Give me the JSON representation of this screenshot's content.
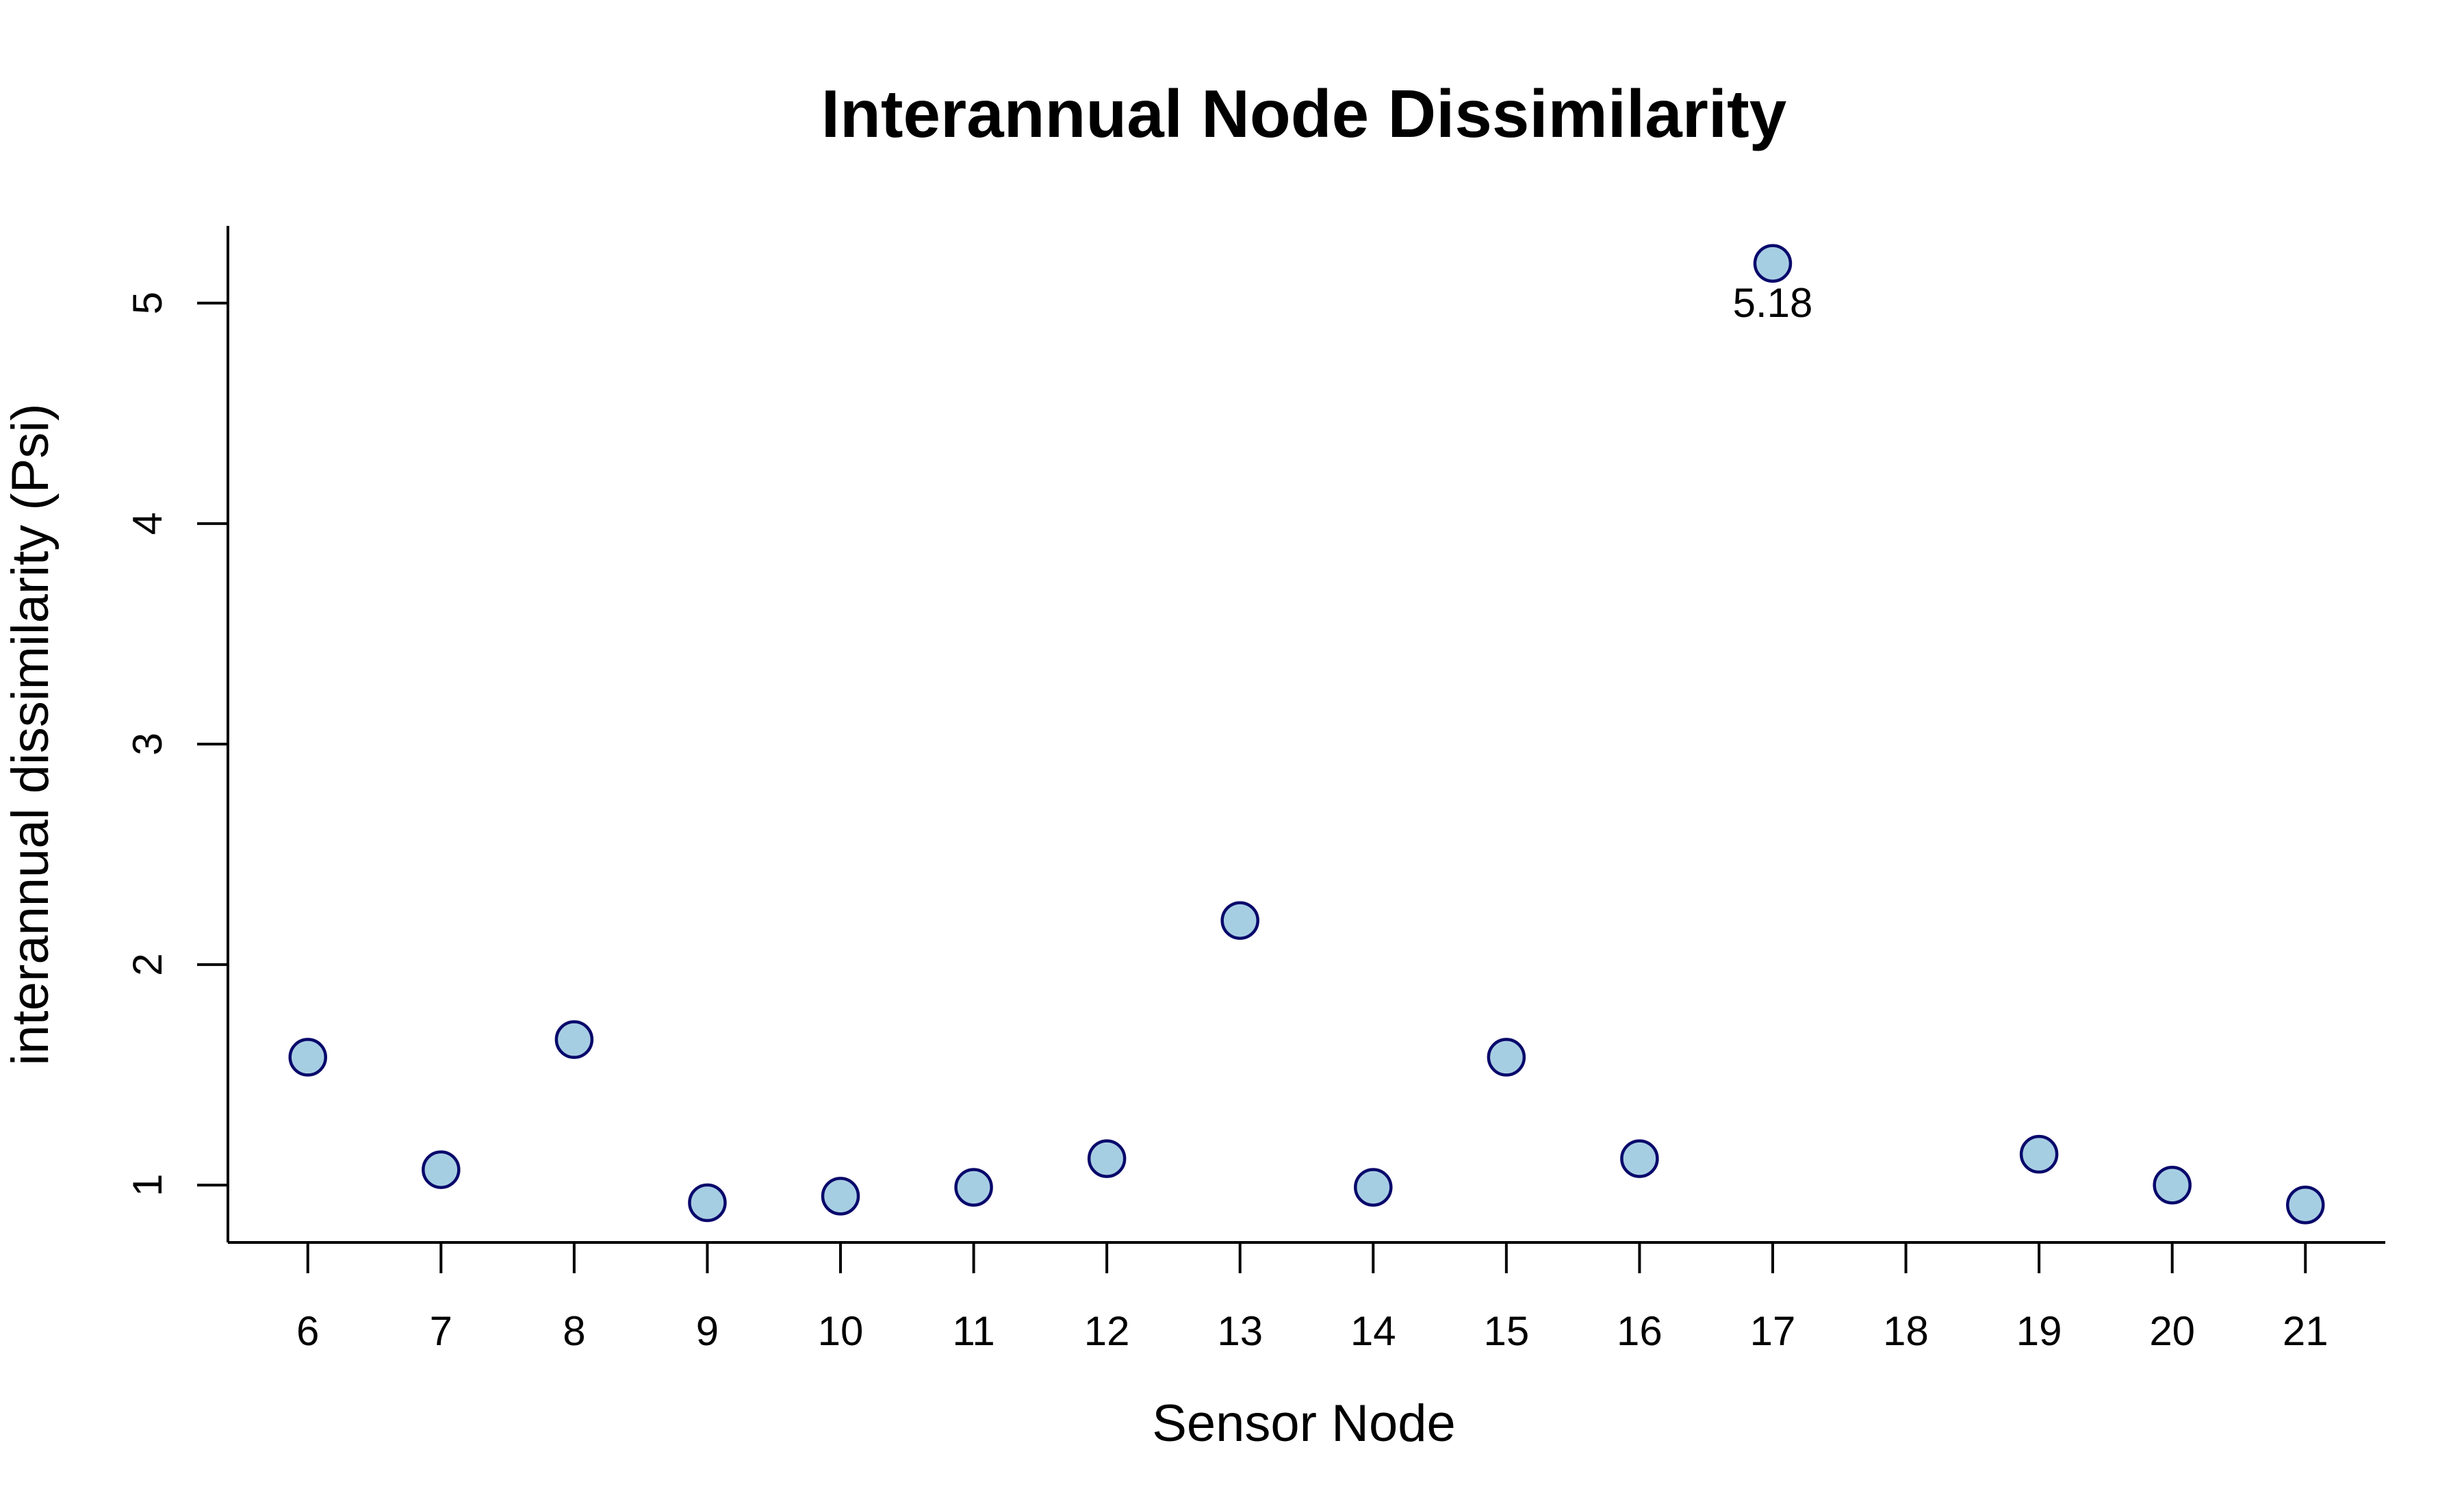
{
  "chart_data": {
    "type": "scatter",
    "title": "Interannual Node Dissimilarity",
    "xlabel": "Sensor Node",
    "ylabel": "interannual dissimilarity (Psi)",
    "x_ticks": [
      "6",
      "7",
      "8",
      "9",
      "10",
      "11",
      "12",
      "13",
      "14",
      "15",
      "16",
      "17",
      "18",
      "19",
      "20",
      "21"
    ],
    "y_ticks": [
      "1",
      "2",
      "3",
      "4",
      "5"
    ],
    "xlim": [
      5.4,
      21.6
    ],
    "ylim": [
      0.74,
      5.35
    ],
    "grid": false,
    "legend": "none",
    "colors": {
      "fill": "#a6cee3",
      "stroke": "#08086b"
    },
    "points": [
      {
        "x": 6,
        "y": 1.58
      },
      {
        "x": 7,
        "y": 1.07
      },
      {
        "x": 8,
        "y": 1.66
      },
      {
        "x": 9,
        "y": 0.92
      },
      {
        "x": 10,
        "y": 0.95
      },
      {
        "x": 11,
        "y": 0.99
      },
      {
        "x": 12,
        "y": 1.12
      },
      {
        "x": 13,
        "y": 2.2
      },
      {
        "x": 14,
        "y": 0.99
      },
      {
        "x": 15,
        "y": 1.58
      },
      {
        "x": 16,
        "y": 1.12
      },
      {
        "x": 17,
        "y": 5.18
      },
      {
        "x": 19,
        "y": 1.14
      },
      {
        "x": 20,
        "y": 1.0
      },
      {
        "x": 21,
        "y": 0.91
      }
    ],
    "annotations": [
      {
        "x": 17,
        "y": 5.18,
        "text": "5.18"
      }
    ]
  }
}
